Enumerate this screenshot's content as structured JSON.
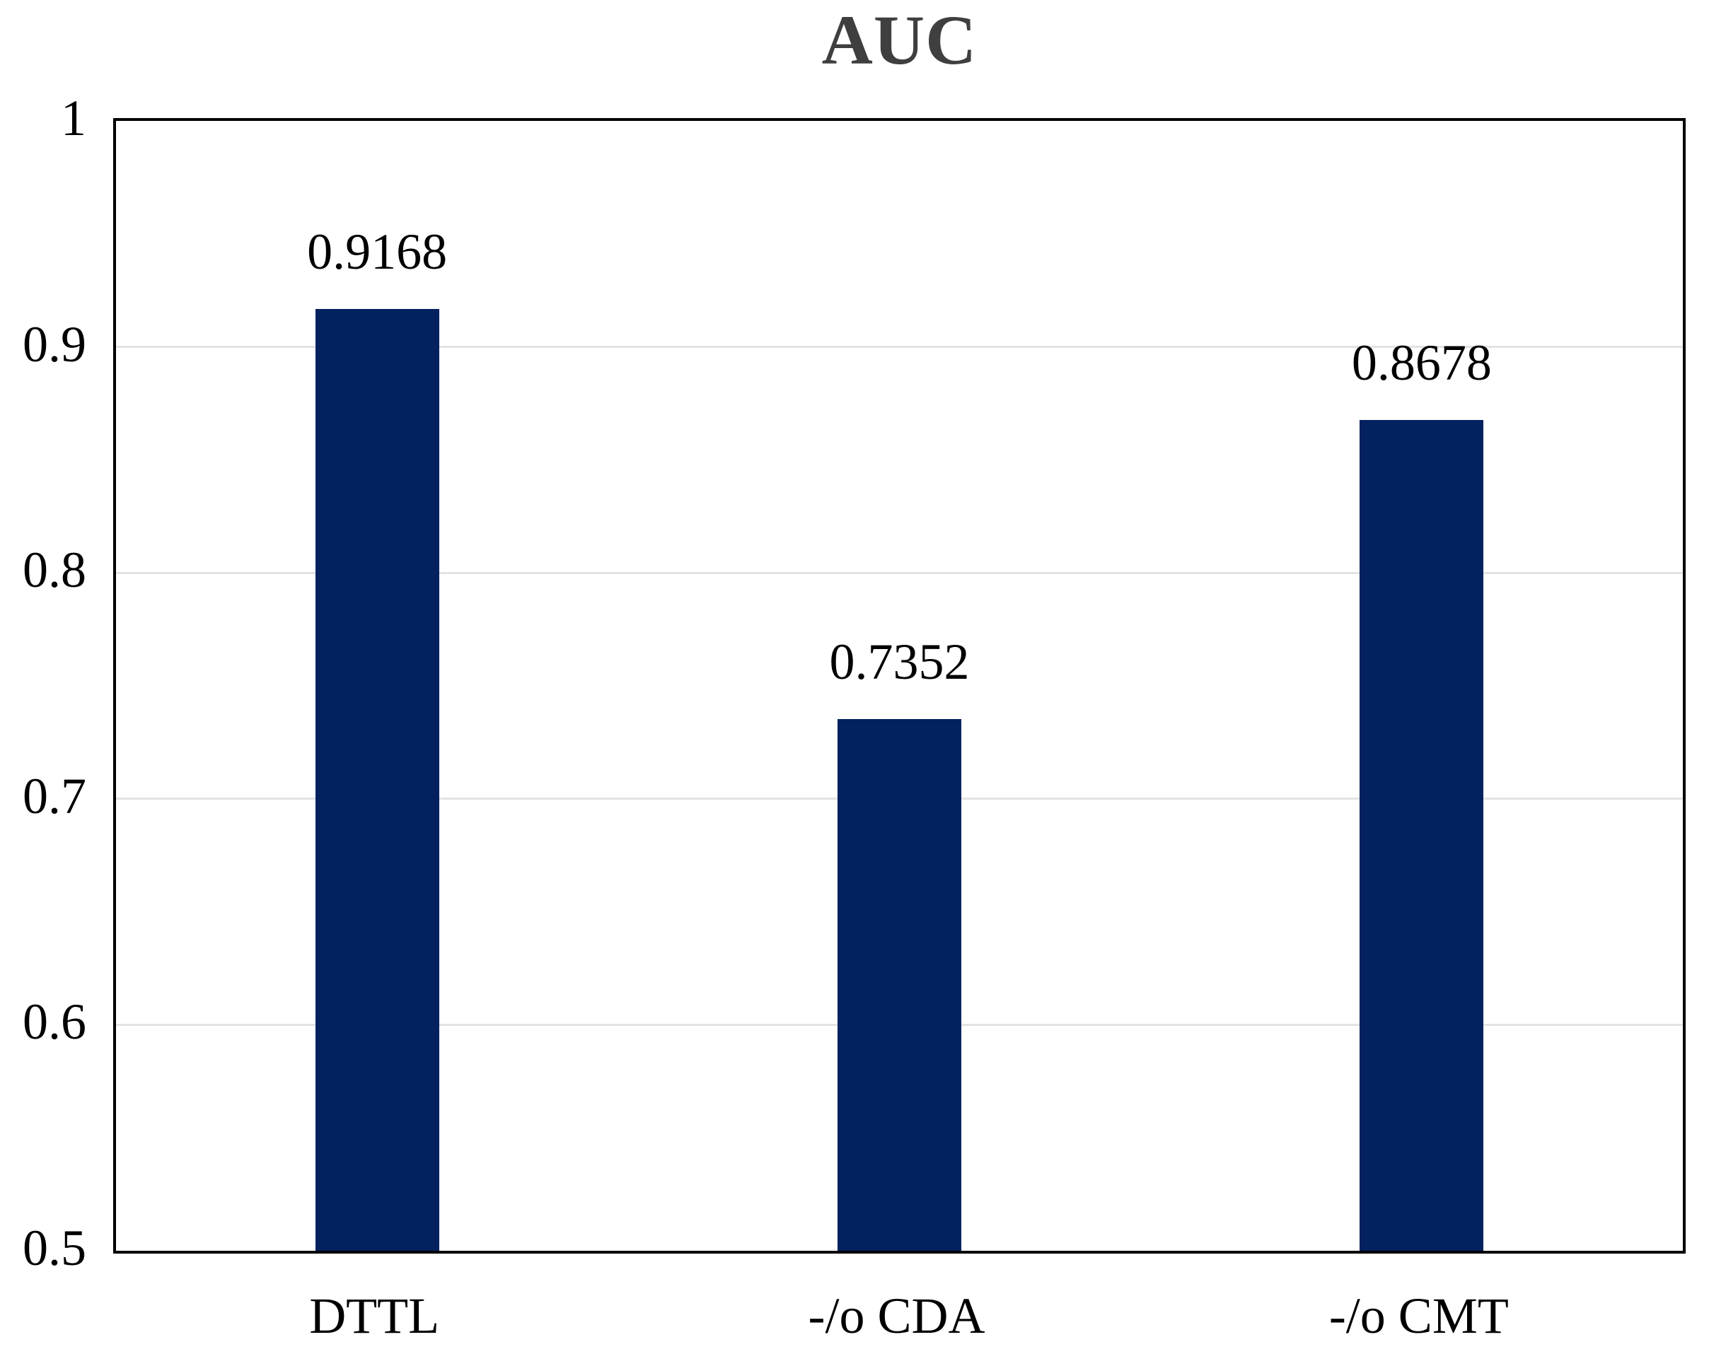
{
  "chart_data": {
    "type": "bar",
    "title": "AUC",
    "categories": [
      "DTTL",
      "-/o CDA",
      "-/o CMT"
    ],
    "values": [
      0.9168,
      0.7352,
      0.8678
    ],
    "value_labels": [
      "0.9168",
      "0.7352",
      "0.8678"
    ],
    "xlabel": "",
    "ylabel": "",
    "ylim": [
      0.5,
      1.0
    ],
    "yticks": [
      {
        "value": 1.0,
        "label": "1"
      },
      {
        "value": 0.9,
        "label": "0.9"
      },
      {
        "value": 0.8,
        "label": "0.8"
      },
      {
        "value": 0.7,
        "label": "0.7"
      },
      {
        "value": 0.6,
        "label": "0.6"
      },
      {
        "value": 0.5,
        "label": "0.5"
      }
    ],
    "grid": true,
    "legend_position": "none",
    "colors": {
      "bar": "#03215F",
      "title_text": "#3F3F3F",
      "gridline": "#E3E3E3",
      "axis_frame": "#000000",
      "label_text": "#000000"
    }
  }
}
